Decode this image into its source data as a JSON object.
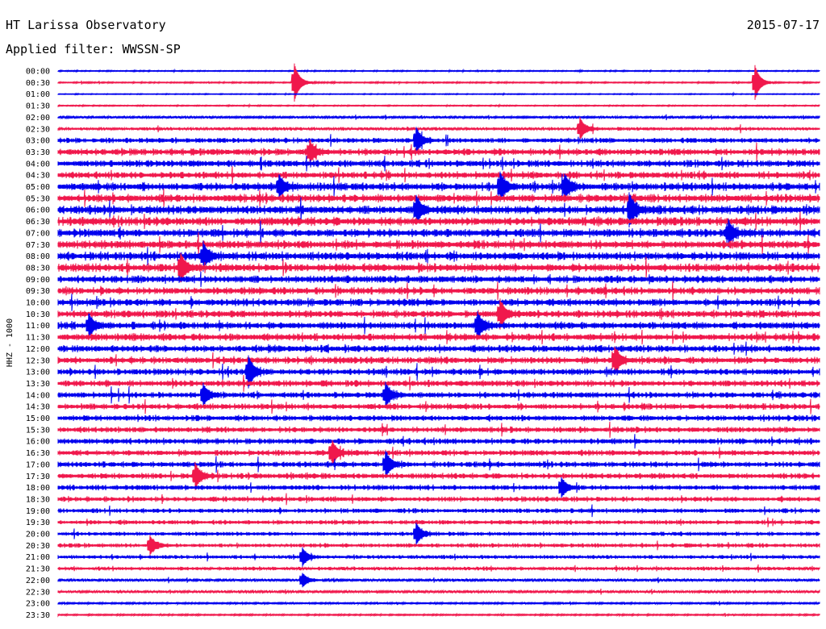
{
  "header": {
    "station": "HT Larissa Observatory",
    "filter": "Applied filter: WWSSN-SP",
    "date": "2015-07-17"
  },
  "colors": {
    "trace_a": "#0000ee",
    "trace_b": "#f0184c",
    "text": "#000000",
    "background": "#ffffff"
  },
  "chart_data": {
    "type": "line",
    "title": "HT Larissa Observatory",
    "subtitle": "Applied filter: WWSSN-SP",
    "date": "2015-07-17",
    "ylabel": "HHZ - 1000",
    "xlabel": "",
    "grid": false,
    "legend": "none",
    "row_labels": [
      "00:00",
      "00:30",
      "01:00",
      "01:30",
      "02:00",
      "02:30",
      "03:00",
      "03:30",
      "04:00",
      "04:30",
      "05:00",
      "05:30",
      "06:00",
      "06:30",
      "07:00",
      "07:30",
      "08:00",
      "08:30",
      "09:00",
      "09:30",
      "10:00",
      "10:30",
      "11:00",
      "11:30",
      "12:00",
      "12:30",
      "13:00",
      "13:30",
      "14:00",
      "14:30",
      "15:00",
      "15:30",
      "16:00",
      "16:30",
      "17:00",
      "17:30",
      "18:00",
      "18:30",
      "19:00",
      "19:30",
      "20:00",
      "20:30",
      "21:00",
      "21:30",
      "22:00",
      "22:30",
      "23:00",
      "23:30"
    ],
    "series_colors": [
      "#0000ee",
      "#f0184c"
    ],
    "row_noise_levels": [
      0.05,
      0.06,
      0.04,
      0.05,
      0.1,
      0.14,
      0.22,
      0.3,
      0.3,
      0.3,
      0.35,
      0.35,
      0.38,
      0.38,
      0.36,
      0.36,
      0.36,
      0.36,
      0.32,
      0.32,
      0.32,
      0.32,
      0.32,
      0.32,
      0.3,
      0.3,
      0.28,
      0.28,
      0.26,
      0.26,
      0.25,
      0.25,
      0.25,
      0.25,
      0.25,
      0.25,
      0.22,
      0.22,
      0.2,
      0.2,
      0.18,
      0.18,
      0.16,
      0.16,
      0.12,
      0.12,
      0.08,
      0.07
    ],
    "events": [
      {
        "row": 1,
        "x_fraction": 0.31,
        "amplitude": 1.8
      },
      {
        "row": 1,
        "x_fraction": 0.915,
        "amplitude": 1.6
      },
      {
        "row": 6,
        "x_fraction": 0.47,
        "amplitude": 1.2
      },
      {
        "row": 5,
        "x_fraction": 0.685,
        "amplitude": 1.0
      },
      {
        "row": 7,
        "x_fraction": 0.33,
        "amplitude": 1.0
      },
      {
        "row": 10,
        "x_fraction": 0.58,
        "amplitude": 1.3
      },
      {
        "row": 10,
        "x_fraction": 0.665,
        "amplitude": 1.1
      },
      {
        "row": 10,
        "x_fraction": 0.29,
        "amplitude": 1.0
      },
      {
        "row": 12,
        "x_fraction": 0.47,
        "amplitude": 1.2
      },
      {
        "row": 12,
        "x_fraction": 0.75,
        "amplitude": 1.4
      },
      {
        "row": 14,
        "x_fraction": 0.88,
        "amplitude": 1.1
      },
      {
        "row": 16,
        "x_fraction": 0.19,
        "amplitude": 1.2
      },
      {
        "row": 17,
        "x_fraction": 0.16,
        "amplitude": 1.4
      },
      {
        "row": 21,
        "x_fraction": 0.58,
        "amplitude": 1.3
      },
      {
        "row": 22,
        "x_fraction": 0.04,
        "amplitude": 1.0
      },
      {
        "row": 22,
        "x_fraction": 0.55,
        "amplitude": 1.2
      },
      {
        "row": 25,
        "x_fraction": 0.73,
        "amplitude": 1.3
      },
      {
        "row": 26,
        "x_fraction": 0.25,
        "amplitude": 1.4
      },
      {
        "row": 28,
        "x_fraction": 0.19,
        "amplitude": 1.0
      },
      {
        "row": 28,
        "x_fraction": 0.43,
        "amplitude": 1.0
      },
      {
        "row": 33,
        "x_fraction": 0.36,
        "amplitude": 1.0
      },
      {
        "row": 34,
        "x_fraction": 0.43,
        "amplitude": 1.1
      },
      {
        "row": 35,
        "x_fraction": 0.18,
        "amplitude": 1.1
      },
      {
        "row": 36,
        "x_fraction": 0.66,
        "amplitude": 1.0
      },
      {
        "row": 40,
        "x_fraction": 0.47,
        "amplitude": 1.0
      },
      {
        "row": 41,
        "x_fraction": 0.12,
        "amplitude": 0.9
      },
      {
        "row": 42,
        "x_fraction": 0.32,
        "amplitude": 0.9
      },
      {
        "row": 44,
        "x_fraction": 0.32,
        "amplitude": 0.7
      }
    ]
  }
}
